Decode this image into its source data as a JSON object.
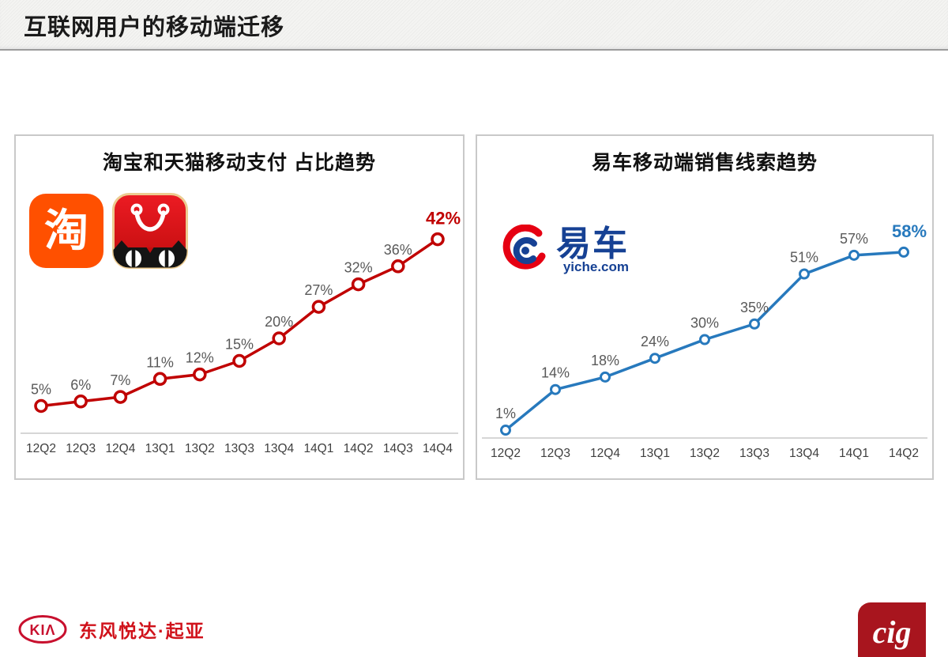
{
  "page": {
    "title": "互联网用户的移动端迁移"
  },
  "colors": {
    "left_line": "#c00000",
    "right_line": "#2779bd",
    "data_label_gray": "#595959",
    "axis_gray": "#d6d6d6",
    "footer_red": "#d0121b",
    "cig_red": "#a8151e"
  },
  "chart_data": [
    {
      "id": "taobao-tmall",
      "type": "line",
      "title": "淘宝和天猫移动支付 占比趋势",
      "categories": [
        "12Q2",
        "12Q3",
        "12Q4",
        "13Q1",
        "13Q2",
        "13Q3",
        "13Q4",
        "14Q1",
        "14Q2",
        "14Q3",
        "14Q4"
      ],
      "values": [
        5,
        6,
        7,
        11,
        12,
        15,
        20,
        27,
        32,
        36,
        42
      ],
      "unit": "%",
      "series_color": "#c00000",
      "marker": "open-circle",
      "last_label_emphasis": true,
      "ylim": [
        0,
        65
      ],
      "grid": false,
      "icons": [
        "taobao-app-icon",
        "tmall-app-icon"
      ],
      "taobao_glyph": "淘"
    },
    {
      "id": "yiche",
      "type": "line",
      "title": "易车移动端销售线索趋势",
      "categories": [
        "12Q2",
        "12Q3",
        "12Q4",
        "13Q1",
        "13Q2",
        "13Q3",
        "13Q4",
        "14Q1",
        "14Q2"
      ],
      "values": [
        1,
        14,
        18,
        24,
        30,
        35,
        51,
        57,
        58
      ],
      "unit": "%",
      "series_color": "#2779bd",
      "marker": "open-circle",
      "last_label_emphasis": true,
      "ylim": [
        0,
        95
      ],
      "grid": false,
      "logo": {
        "name": "yiche-logo",
        "text": "易车",
        "subtext": "yiche.com"
      }
    }
  ],
  "footer": {
    "kia_logo_letters": "KIΛ",
    "kia_text": "东风悦达·起亚",
    "cig_logo_text": "cig"
  }
}
